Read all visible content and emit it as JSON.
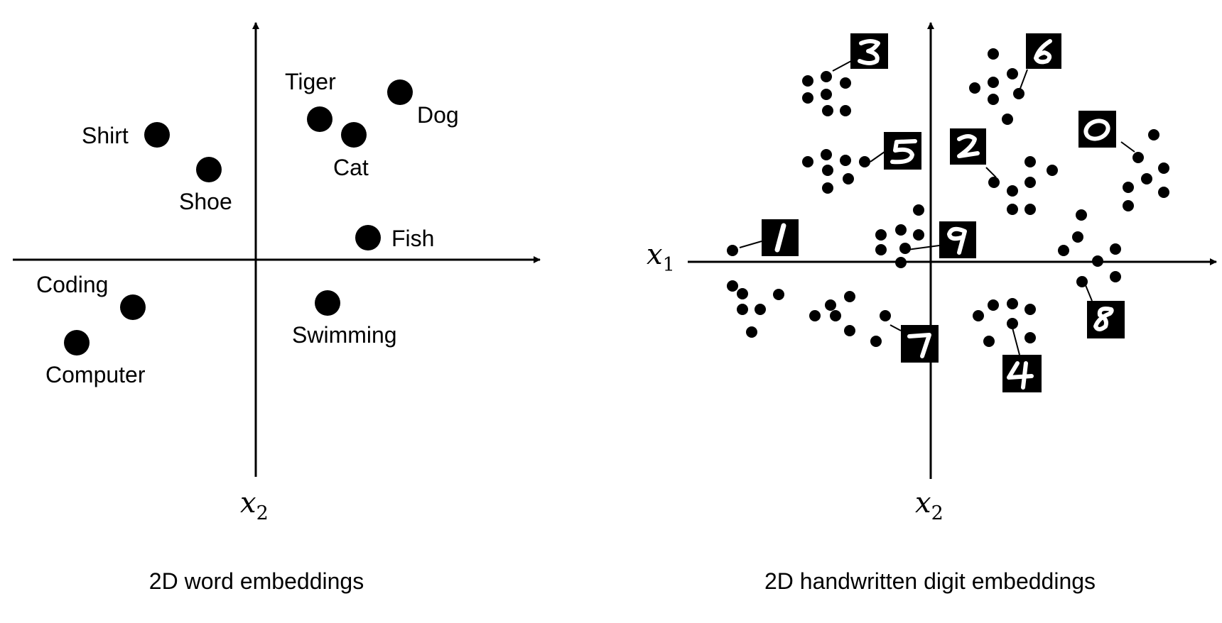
{
  "left": {
    "caption": "2D word embeddings",
    "axis_vertical_label": "x",
    "axis_vertical_sub": "2",
    "words": [
      {
        "text": "Shirt"
      },
      {
        "text": "Shoe"
      },
      {
        "text": "Tiger"
      },
      {
        "text": "Cat"
      },
      {
        "text": "Dog"
      },
      {
        "text": "Fish"
      },
      {
        "text": "Coding"
      },
      {
        "text": "Computer"
      },
      {
        "text": "Swimming"
      }
    ]
  },
  "right": {
    "caption": "2D handwritten digit embeddings",
    "axis_horizontal_label": "x",
    "axis_horizontal_sub": "1",
    "axis_vertical_label": "x",
    "axis_vertical_sub": "2",
    "digits": [
      "3",
      "6",
      "5",
      "2",
      "0",
      "1",
      "9",
      "7",
      "4",
      "8"
    ]
  },
  "colors": {
    "ink": "#000000",
    "background": "#ffffff"
  }
}
